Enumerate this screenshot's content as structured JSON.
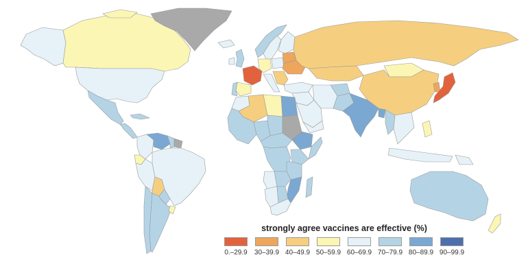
{
  "legend": {
    "title": "strongly agree vaccines are effective (%)",
    "bins": [
      {
        "label": "0.–29.9",
        "color": "#e2623d"
      },
      {
        "label": "30–39.9",
        "color": "#eea55c"
      },
      {
        "label": "40–49.9",
        "color": "#f5cf7f"
      },
      {
        "label": "50–59.9",
        "color": "#fbf6b4"
      },
      {
        "label": "60–69.9",
        "color": "#e6f2f8"
      },
      {
        "label": "70–79.9",
        "color": "#b4d4e6"
      },
      {
        "label": "80–89.9",
        "color": "#7aa8d2"
      },
      {
        "label": "90–99.9",
        "color": "#4e6fad"
      }
    ],
    "no_data_color": "#a9a9a9"
  },
  "regions": [
    {
      "name": "Alaska",
      "bin": 4
    },
    {
      "name": "Canada",
      "bin": 3
    },
    {
      "name": "Greenland",
      "bin": -1
    },
    {
      "name": "United States",
      "bin": 4
    },
    {
      "name": "Mexico",
      "bin": 5
    },
    {
      "name": "Central America",
      "bin": 5
    },
    {
      "name": "Cuba",
      "bin": 5
    },
    {
      "name": "Colombia",
      "bin": 4
    },
    {
      "name": "Venezuela",
      "bin": 6
    },
    {
      "name": "Guyana",
      "bin": 5
    },
    {
      "name": "Suriname",
      "bin": -1
    },
    {
      "name": "Ecuador",
      "bin": 3
    },
    {
      "name": "Peru",
      "bin": 4
    },
    {
      "name": "Brazil",
      "bin": 4
    },
    {
      "name": "Bolivia",
      "bin": 2
    },
    {
      "name": "Paraguay",
      "bin": 5
    },
    {
      "name": "Chile",
      "bin": 5
    },
    {
      "name": "Argentina",
      "bin": 5
    },
    {
      "name": "Uruguay",
      "bin": 3
    },
    {
      "name": "Iceland",
      "bin": 4
    },
    {
      "name": "United Kingdom",
      "bin": 5
    },
    {
      "name": "Ireland",
      "bin": 4
    },
    {
      "name": "Norway",
      "bin": 5
    },
    {
      "name": "Sweden",
      "bin": 4
    },
    {
      "name": "Finland",
      "bin": 4
    },
    {
      "name": "Russia",
      "bin": 2
    },
    {
      "name": "France",
      "bin": 0
    },
    {
      "name": "Spain",
      "bin": 3
    },
    {
      "name": "Portugal",
      "bin": 5
    },
    {
      "name": "Germany",
      "bin": 3
    },
    {
      "name": "Poland",
      "bin": 4
    },
    {
      "name": "Belarus",
      "bin": 1
    },
    {
      "name": "Ukraine",
      "bin": 1
    },
    {
      "name": "Italy",
      "bin": 4
    },
    {
      "name": "Balkans",
      "bin": 2
    },
    {
      "name": "Turkey",
      "bin": 4
    },
    {
      "name": "Kazakhstan",
      "bin": 2
    },
    {
      "name": "Mongolia",
      "bin": 3
    },
    {
      "name": "China",
      "bin": 2
    },
    {
      "name": "Japan",
      "bin": 0
    },
    {
      "name": "South Korea",
      "bin": 1
    },
    {
      "name": "Middle East",
      "bin": 4
    },
    {
      "name": "Iran",
      "bin": 4
    },
    {
      "name": "Afghanistan",
      "bin": 5
    },
    {
      "name": "Pakistan",
      "bin": 5
    },
    {
      "name": "India",
      "bin": 6
    },
    {
      "name": "Bangladesh",
      "bin": 6
    },
    {
      "name": "Myanmar",
      "bin": 5
    },
    {
      "name": "Southeast Asia",
      "bin": 4
    },
    {
      "name": "Indonesia",
      "bin": 4
    },
    {
      "name": "Philippines",
      "bin": 3
    },
    {
      "name": "Papua New Guinea",
      "bin": 4
    },
    {
      "name": "Australia",
      "bin": 5
    },
    {
      "name": "New Zealand",
      "bin": 3
    },
    {
      "name": "Morocco",
      "bin": 4
    },
    {
      "name": "Algeria",
      "bin": 2
    },
    {
      "name": "Libya",
      "bin": 3
    },
    {
      "name": "Egypt",
      "bin": 6
    },
    {
      "name": "West Africa",
      "bin": 5
    },
    {
      "name": "Nigeria",
      "bin": 5
    },
    {
      "name": "Chad",
      "bin": 5
    },
    {
      "name": "Sudan",
      "bin": -1
    },
    {
      "name": "Ethiopia",
      "bin": 6
    },
    {
      "name": "Somalia",
      "bin": 5
    },
    {
      "name": "Central Africa",
      "bin": 5
    },
    {
      "name": "DR Congo",
      "bin": 5
    },
    {
      "name": "Kenya",
      "bin": 5
    },
    {
      "name": "Tanzania",
      "bin": 5
    },
    {
      "name": "Angola",
      "bin": 4
    },
    {
      "name": "Zambia",
      "bin": 5
    },
    {
      "name": "Mozambique",
      "bin": 6
    },
    {
      "name": "Namibia",
      "bin": 4
    },
    {
      "name": "Botswana",
      "bin": 5
    },
    {
      "name": "South Africa",
      "bin": 4
    },
    {
      "name": "Madagascar",
      "bin": 5
    },
    {
      "name": "Saudi Arabia",
      "bin": 4
    },
    {
      "name": "Yemen",
      "bin": 4
    }
  ]
}
